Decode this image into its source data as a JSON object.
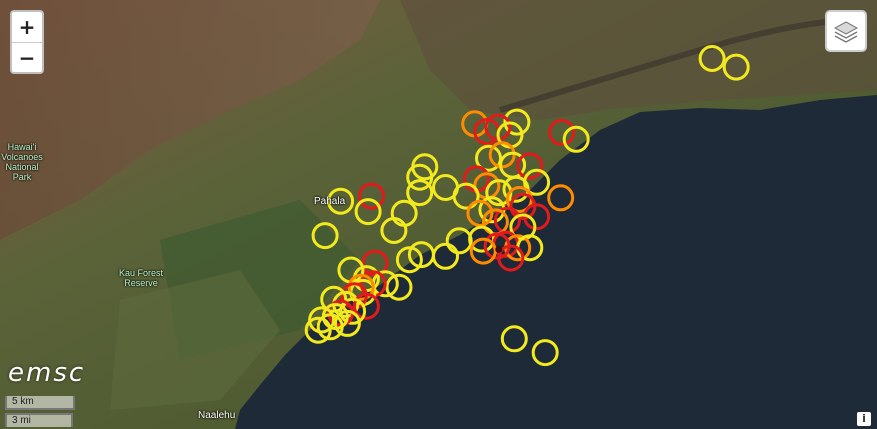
{
  "map": {
    "zoom_in_label": "+",
    "zoom_out_label": "−",
    "logo_text": "emsc",
    "scale_km": "5 km",
    "scale_mi": "3 mi",
    "attribution_label": "i",
    "layers_icon": "layers-icon",
    "labels": {
      "park": [
        "Hawai'i",
        "Volcanoes",
        "National Park"
      ],
      "forest": [
        "Kau Forest",
        "Reserve"
      ],
      "town_pahala": "Pahala",
      "town_naalehu": "Naalehu"
    },
    "colors": {
      "yellow": "#f2ea1c",
      "orange": "#ff8c00",
      "red": "#e31a1c",
      "ocean": "#1e2a38"
    },
    "events": [
      {
        "c": "yellow",
        "lat": 19.236,
        "lon": -155.286
      },
      {
        "c": "yellow",
        "lat": 19.231,
        "lon": -155.272
      },
      {
        "c": "yellow",
        "lat": 19.199,
        "lon": -155.3995
      },
      {
        "c": "orange",
        "lat": 19.198,
        "lon": -155.424
      },
      {
        "c": "red",
        "lat": 19.1935,
        "lon": -155.417
      },
      {
        "c": "red",
        "lat": 19.193,
        "lon": -155.3735
      },
      {
        "c": "red",
        "lat": 19.196,
        "lon": -155.4105
      },
      {
        "c": "yellow",
        "lat": 19.1915,
        "lon": -155.4035
      },
      {
        "c": "yellow",
        "lat": 19.189,
        "lon": -155.365
      },
      {
        "c": "yellow",
        "lat": 19.178,
        "lon": -155.416
      },
      {
        "c": "orange",
        "lat": 19.18,
        "lon": -155.408
      },
      {
        "c": "yellow",
        "lat": 19.174,
        "lon": -155.402
      },
      {
        "c": "red",
        "lat": 19.1735,
        "lon": -155.392
      },
      {
        "c": "yellow",
        "lat": 19.173,
        "lon": -155.453
      },
      {
        "c": "yellow",
        "lat": 19.167,
        "lon": -155.456
      },
      {
        "c": "yellow",
        "lat": 19.164,
        "lon": -155.388
      },
      {
        "c": "red",
        "lat": 19.166,
        "lon": -155.423
      },
      {
        "c": "orange",
        "lat": 19.162,
        "lon": -155.417
      },
      {
        "c": "yellow",
        "lat": 19.158,
        "lon": -155.41
      },
      {
        "c": "yellow",
        "lat": 19.156,
        "lon": -155.429
      },
      {
        "c": "red",
        "lat": 19.156,
        "lon": -155.484
      },
      {
        "c": "yellow",
        "lat": 19.153,
        "lon": -155.502
      },
      {
        "c": "yellow",
        "lat": 19.158,
        "lon": -155.456
      },
      {
        "c": "yellow",
        "lat": 19.161,
        "lon": -155.441
      },
      {
        "c": "yellow",
        "lat": 19.16,
        "lon": -155.4
      },
      {
        "c": "orange",
        "lat": 19.154,
        "lon": -155.398
      },
      {
        "c": "orange",
        "lat": 19.155,
        "lon": -155.374
      },
      {
        "c": "red",
        "lat": 19.15,
        "lon": -155.396
      },
      {
        "c": "yellow",
        "lat": 19.148,
        "lon": -155.414
      },
      {
        "c": "orange",
        "lat": 19.146,
        "lon": -155.421
      },
      {
        "c": "red",
        "lat": 19.144,
        "lon": -155.388
      },
      {
        "c": "red",
        "lat": 19.142,
        "lon": -155.405
      },
      {
        "c": "orange",
        "lat": 19.141,
        "lon": -155.412
      },
      {
        "c": "yellow",
        "lat": 19.147,
        "lon": -155.486
      },
      {
        "c": "yellow",
        "lat": 19.146,
        "lon": -155.465
      },
      {
        "c": "yellow",
        "lat": 19.138,
        "lon": -155.396
      },
      {
        "c": "yellow",
        "lat": 19.136,
        "lon": -155.471
      },
      {
        "c": "yellow",
        "lat": 19.133,
        "lon": -155.511
      },
      {
        "c": "yellow",
        "lat": 19.131,
        "lon": -155.42
      },
      {
        "c": "yellow",
        "lat": 19.13,
        "lon": -155.433
      },
      {
        "c": "red",
        "lat": 19.128,
        "lon": -155.406
      },
      {
        "c": "orange",
        "lat": 19.126,
        "lon": -155.399
      },
      {
        "c": "red",
        "lat": 19.127,
        "lon": -155.411
      },
      {
        "c": "yellow",
        "lat": 19.126,
        "lon": -155.392
      },
      {
        "c": "orange",
        "lat": 19.124,
        "lon": -155.419
      },
      {
        "c": "yellow",
        "lat": 19.122,
        "lon": -155.455
      },
      {
        "c": "yellow",
        "lat": 19.121,
        "lon": -155.441
      },
      {
        "c": "red",
        "lat": 19.12,
        "lon": -155.403
      },
      {
        "c": "yellow",
        "lat": 19.119,
        "lon": -155.462
      },
      {
        "c": "red",
        "lat": 19.117,
        "lon": -155.482
      },
      {
        "c": "yellow",
        "lat": 19.113,
        "lon": -155.496
      },
      {
        "c": "yellow",
        "lat": 19.108,
        "lon": -155.487
      },
      {
        "c": "yellow",
        "lat": 19.105,
        "lon": -155.476
      },
      {
        "c": "yellow",
        "lat": 19.103,
        "lon": -155.468
      },
      {
        "c": "red",
        "lat": 19.105,
        "lon": -155.483
      },
      {
        "c": "yellow",
        "lat": 19.1,
        "lon": -155.489
      },
      {
        "c": "orange",
        "lat": 19.103,
        "lon": -155.49
      },
      {
        "c": "red",
        "lat": 19.098,
        "lon": -155.494
      },
      {
        "c": "yellow",
        "lat": 19.096,
        "lon": -155.506
      },
      {
        "c": "yellow",
        "lat": 19.093,
        "lon": -155.499
      },
      {
        "c": "red",
        "lat": 19.092,
        "lon": -155.487
      },
      {
        "c": "yellow",
        "lat": 19.089,
        "lon": -155.495
      },
      {
        "c": "red",
        "lat": 19.088,
        "lon": -155.502
      },
      {
        "c": "yellow",
        "lat": 19.086,
        "lon": -155.505
      },
      {
        "c": "yellow",
        "lat": 19.084,
        "lon": -155.513
      },
      {
        "c": "yellow",
        "lat": 19.08,
        "lon": -155.508
      },
      {
        "c": "yellow",
        "lat": 19.078,
        "lon": -155.515
      },
      {
        "c": "yellow",
        "lat": 19.082,
        "lon": -155.498
      },
      {
        "c": "yellow",
        "lat": 19.073,
        "lon": -155.401
      },
      {
        "c": "yellow",
        "lat": 19.065,
        "lon": -155.383
      }
    ],
    "epicenter": {
      "lat": 19.125,
      "lon": -155.41
    }
  }
}
